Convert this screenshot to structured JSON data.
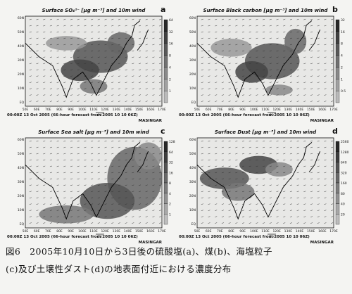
{
  "panels": [
    {
      "letter": "a",
      "title": "Surface SO₄²⁻ [μg m⁻³] and 10m wind",
      "footer": "00:00Z 13 Oct 2005 (66-hour forecast from 2005 10 10 06Z)",
      "model": "MASINGAR",
      "ref": "20",
      "colorbar": [
        "64",
        "32",
        "16",
        "8",
        "4",
        "2",
        "1"
      ]
    },
    {
      "letter": "b",
      "title": "Surface Black carbon [μg m⁻³] and 10m wind",
      "footer": "00:00Z 13 Oct 2005 (66-hour forecast from 2005 10 10 06Z)",
      "model": "MASINGAR",
      "ref": "20",
      "colorbar": [
        "32",
        "16",
        "8",
        "4",
        "2",
        "1",
        "0.5"
      ]
    },
    {
      "letter": "c",
      "title": "Surface Sea salt [μg m⁻³] and 10m wind",
      "footer": "00:00Z 13 Oct 2005 (66-hour forecast from 2005 10 10 06Z)",
      "model": "MASINGAR",
      "ref": "20",
      "colorbar": [
        "128",
        "64",
        "32",
        "16",
        "8",
        "4",
        "2",
        "1"
      ]
    },
    {
      "letter": "d",
      "title": "Surface Dust [μg m⁻³] and 10m wind",
      "footer": "00:00Z 13 Oct 2005 (66-hour forecast from 2005 10 10 06Z)",
      "model": "MASINGAR",
      "ref": "20",
      "colorbar": [
        "2560",
        "1280",
        "640",
        "320",
        "160",
        "80",
        "40",
        "20"
      ]
    }
  ],
  "lat_labels": [
    "60N",
    "50N",
    "40N",
    "30N",
    "20N",
    "10N",
    "EQ"
  ],
  "lon_labels": [
    "50E",
    "60E",
    "70E",
    "80E",
    "90E",
    "100E",
    "110E",
    "120E",
    "130E",
    "140E",
    "150E",
    "160E",
    "170E"
  ],
  "caption": {
    "line1": "図6　2005年10月10日から3日後の硫酸塩(a)、煤(b)、海塩粒子",
    "line2": "(c)及び土壌性ダスト(d)の地表面付近における濃度分布"
  }
}
